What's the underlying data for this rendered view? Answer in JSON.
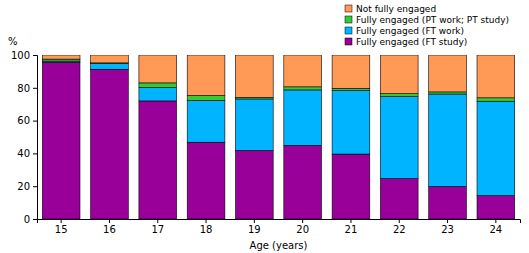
{
  "chart_data": {
    "type": "bar",
    "stacked": true,
    "y_label": "%",
    "x_label": "Age (years)",
    "categories": [
      "15",
      "16",
      "17",
      "18",
      "19",
      "20",
      "21",
      "22",
      "23",
      "24"
    ],
    "series": [
      {
        "name": "Fully engaged (FT study)",
        "color": "#990099",
        "values": [
          95.6,
          91.3,
          72.0,
          46.8,
          41.8,
          44.9,
          39.6,
          24.6,
          19.8,
          14.2
        ]
      },
      {
        "name": "Fully engaged (FT work)",
        "color": "#00b4ff",
        "values": [
          0.7,
          3.5,
          8.2,
          25.5,
          31.4,
          33.8,
          38.7,
          50.0,
          56.4,
          57.6
        ]
      },
      {
        "name": "Fully engaged (PT work; PT study)",
        "color": "#33cc33",
        "values": [
          1.2,
          0.4,
          2.8,
          3.0,
          0.9,
          1.9,
          1.4,
          1.8,
          1.3,
          2.1
        ]
      },
      {
        "name": "Not fully engaged",
        "color": "#ff9955",
        "values": [
          2.5,
          4.8,
          17.0,
          24.7,
          25.9,
          19.4,
          20.3,
          23.6,
          22.5,
          26.1
        ]
      }
    ],
    "ylim": [
      0,
      100
    ],
    "yticks": [
      0,
      20,
      40,
      60,
      80,
      100
    ],
    "grid": false,
    "legend": "top-right"
  }
}
